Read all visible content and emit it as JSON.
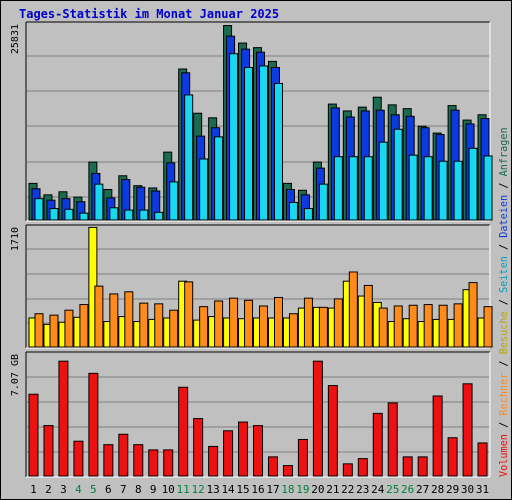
{
  "title": "Tages-Statistik im Monat Januar 2025",
  "colors": {
    "background": "#c0c0c0",
    "panel": "#c0c0c0",
    "grid": "#808080",
    "anfragen": "#1a6b50",
    "dateien": "#0b3be0",
    "seiten": "#18d8f0",
    "besuche": "#ffff00",
    "rechner": "#ff8c1a",
    "volumen": "#ee1111",
    "weekend_label": "#008040",
    "day_label": "#000000"
  },
  "legend": {
    "anfragen": "Anfragen",
    "dateien": "Dateien",
    "seiten": "Seiten",
    "besuche": "Besuche",
    "rechner": "Rechner",
    "volumen": "Volumen",
    "separator": " / "
  },
  "chart_data": [
    {
      "type": "bar",
      "name": "panel-top",
      "y_max_label": "25831",
      "ylim": [
        0,
        25831
      ],
      "categories": [
        "1",
        "2",
        "3",
        "4",
        "5",
        "6",
        "7",
        "8",
        "9",
        "10",
        "11",
        "12",
        "13",
        "14",
        "15",
        "16",
        "17",
        "18",
        "19",
        "20",
        "21",
        "22",
        "23",
        "24",
        "25",
        "26",
        "27",
        "28",
        "29",
        "30",
        "31"
      ],
      "weekend_days": [
        "4",
        "5",
        "11",
        "12",
        "18",
        "19",
        "25",
        "26"
      ],
      "series": [
        {
          "name": "Anfragen",
          "values": [
            4800,
            3300,
            3700,
            3000,
            7600,
            4000,
            5800,
            4500,
            4200,
            8900,
            19800,
            14000,
            13400,
            25500,
            23200,
            22600,
            20800,
            4800,
            3900,
            7600,
            15200,
            14300,
            14800,
            16100,
            15100,
            14600,
            12300,
            11400,
            15000,
            13100,
            13800
          ]
        },
        {
          "name": "Dateien",
          "values": [
            4100,
            2600,
            2800,
            2400,
            6100,
            2900,
            5300,
            4300,
            3800,
            7500,
            19300,
            11000,
            12100,
            24100,
            22400,
            22000,
            20000,
            4000,
            3300,
            6800,
            14700,
            13500,
            14300,
            14400,
            13800,
            13600,
            12100,
            11200,
            14400,
            12600,
            13300
          ]
        },
        {
          "name": "Seiten",
          "values": [
            2800,
            1500,
            1400,
            900,
            4700,
            1600,
            1300,
            1300,
            1000,
            5000,
            16400,
            8000,
            10900,
            21800,
            20000,
            20200,
            17900,
            2300,
            1500,
            4700,
            8300,
            8300,
            8300,
            10200,
            11900,
            8500,
            8300,
            7700,
            7700,
            9400,
            8400
          ]
        }
      ]
    },
    {
      "type": "bar",
      "name": "panel-middle",
      "y_max_label": "1710",
      "ylim": [
        0,
        1710
      ],
      "categories": [
        "1",
        "2",
        "3",
        "4",
        "5",
        "6",
        "7",
        "8",
        "9",
        "10",
        "11",
        "12",
        "13",
        "14",
        "15",
        "16",
        "17",
        "18",
        "19",
        "20",
        "21",
        "22",
        "23",
        "24",
        "25",
        "26",
        "27",
        "28",
        "29",
        "30",
        "31"
      ],
      "series": [
        {
          "name": "Besuche",
          "values": [
            410,
            320,
            350,
            420,
            1690,
            360,
            430,
            360,
            390,
            410,
            930,
            380,
            430,
            410,
            400,
            410,
            410,
            410,
            550,
            560,
            550,
            930,
            720,
            630,
            360,
            400,
            360,
            390,
            390,
            810,
            410
          ]
        },
        {
          "name": "Rechner",
          "values": [
            470,
            450,
            520,
            600,
            860,
            750,
            780,
            620,
            610,
            520,
            920,
            570,
            650,
            690,
            660,
            580,
            700,
            470,
            690,
            560,
            680,
            1060,
            870,
            550,
            580,
            590,
            600,
            590,
            610,
            910,
            570
          ]
        }
      ]
    },
    {
      "type": "bar",
      "name": "panel-bottom",
      "y_max_label": "7.07 GB",
      "ylim": [
        0,
        7.07
      ],
      "categories": [
        "1",
        "2",
        "3",
        "4",
        "5",
        "6",
        "7",
        "8",
        "9",
        "10",
        "11",
        "12",
        "13",
        "14",
        "15",
        "16",
        "17",
        "18",
        "19",
        "20",
        "21",
        "22",
        "23",
        "24",
        "25",
        "26",
        "27",
        "28",
        "29",
        "30",
        "31"
      ],
      "series": [
        {
          "name": "Volumen",
          "values": [
            4.7,
            2.9,
            6.6,
            2.0,
            5.9,
            1.8,
            2.4,
            1.8,
            1.5,
            1.5,
            5.1,
            3.3,
            1.7,
            2.6,
            3.1,
            2.9,
            1.1,
            0.6,
            2.1,
            6.6,
            5.2,
            0.7,
            1.0,
            3.6,
            4.2,
            1.1,
            1.1,
            4.6,
            2.2,
            5.3,
            1.9
          ]
        }
      ]
    }
  ]
}
